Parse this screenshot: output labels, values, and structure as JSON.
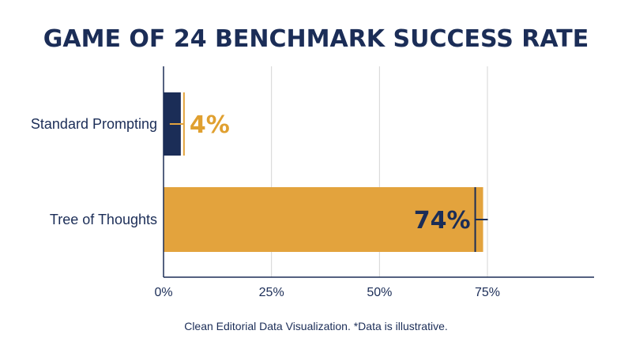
{
  "chart_data": {
    "type": "bar",
    "orientation": "horizontal",
    "title": "GAME OF 24 BENCHMARK SUCCESS RATE",
    "categories": [
      "Standard Prompting",
      "Tree of Thoughts"
    ],
    "values": [
      4,
      74
    ],
    "data_labels": [
      "4%",
      "74%"
    ],
    "xlim": [
      0,
      100
    ],
    "x_ticks": [
      0,
      25,
      50,
      75
    ],
    "x_tick_labels": [
      "0%",
      "25%",
      "50%",
      "75%"
    ],
    "xlabel": "",
    "ylabel": "",
    "grid": true,
    "legend": "none",
    "colors": {
      "title": "#1b2d57",
      "standard_bar": "#1b2d57",
      "tot_bar": "#e3a33d",
      "standard_label": "#e0a030",
      "tot_label": "#1b2d57",
      "grid": "#d4d4d4"
    }
  },
  "footnote": "Clean Editorial Data Visualization. *Data is illustrative."
}
